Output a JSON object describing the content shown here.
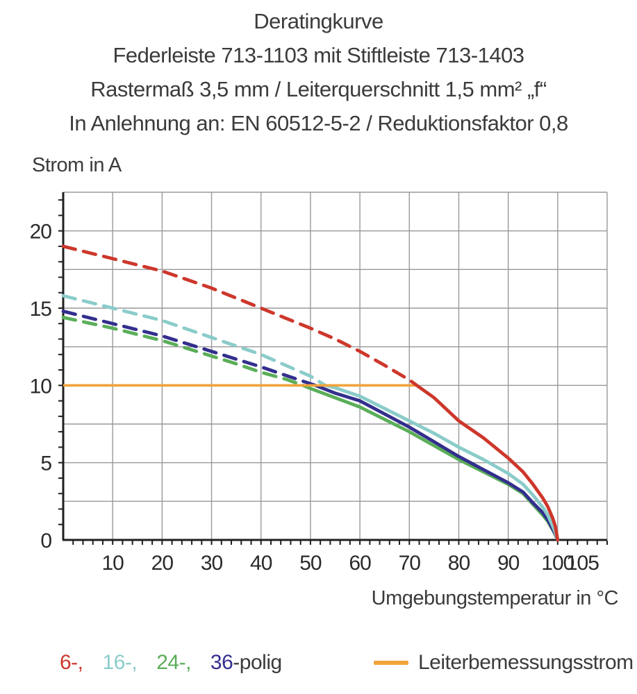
{
  "header": {
    "line1": "Deratingkurve",
    "line2": "Federleiste 713-1103 mit Stiftleiste 713-1403",
    "line3": "Rastermaß 3,5 mm / Leiterquerschnitt 1,5 mm² „f“",
    "line4": "In Anlehnung an: EN 60512-5-2 / Reduktionsfaktor 0,8"
  },
  "chart_data": {
    "type": "line",
    "title": "Deratingkurve",
    "ylabel": "Strom in A",
    "xlabel": "Umgebungstemperatur in °C",
    "xlim": [
      0,
      110
    ],
    "ylim": [
      0,
      22.5
    ],
    "x_tick_labels": [
      10,
      20,
      30,
      40,
      50,
      60,
      70,
      80,
      90,
      100,
      105
    ],
    "y_tick_labels": [
      0,
      5,
      10,
      15,
      20
    ],
    "x_gridline_step": 10,
    "y_gridline_step": 2.5,
    "x_minor_tick_step": 2,
    "y_minor_tick_step": 1,
    "grid": true,
    "colors": {
      "grid": "#999999",
      "axis": "#1f1f1f",
      "tick_label": "#2a2a2a"
    },
    "series": [
      {
        "name": "6-polig",
        "color": "#cd372b",
        "style_before": "dashed",
        "style_after": "solid",
        "style_change_at_x": 71.5,
        "points": [
          [
            0,
            19.0
          ],
          [
            5,
            18.6
          ],
          [
            10,
            18.2
          ],
          [
            15,
            17.8
          ],
          [
            20,
            17.4
          ],
          [
            25,
            16.85
          ],
          [
            30,
            16.3
          ],
          [
            35,
            15.65
          ],
          [
            40,
            15.0
          ],
          [
            45,
            14.35
          ],
          [
            50,
            13.7
          ],
          [
            55,
            13.0
          ],
          [
            60,
            12.2
          ],
          [
            65,
            11.3
          ],
          [
            70,
            10.35
          ],
          [
            71.5,
            10.0
          ],
          [
            75,
            9.2
          ],
          [
            80,
            7.7
          ],
          [
            85,
            6.6
          ],
          [
            90,
            5.3
          ],
          [
            93,
            4.4
          ],
          [
            95,
            3.6
          ],
          [
            97,
            2.7
          ],
          [
            98,
            2.15
          ],
          [
            99,
            1.4
          ],
          [
            99.5,
            0.9
          ],
          [
            100,
            0
          ]
        ]
      },
      {
        "name": "16-polig",
        "color": "#8accca",
        "style_before": "dashed",
        "style_after": "solid",
        "style_change_at_x": 53,
        "points": [
          [
            0,
            15.8
          ],
          [
            5,
            15.4
          ],
          [
            10,
            15.0
          ],
          [
            15,
            14.6
          ],
          [
            20,
            14.2
          ],
          [
            25,
            13.65
          ],
          [
            30,
            13.1
          ],
          [
            35,
            12.55
          ],
          [
            40,
            12.0
          ],
          [
            45,
            11.3
          ],
          [
            50,
            10.6
          ],
          [
            53,
            10.0
          ],
          [
            55,
            9.85
          ],
          [
            60,
            9.3
          ],
          [
            65,
            8.5
          ],
          [
            70,
            7.7
          ],
          [
            75,
            6.9
          ],
          [
            80,
            6.0
          ],
          [
            85,
            5.2
          ],
          [
            90,
            4.3
          ],
          [
            93,
            3.6
          ],
          [
            95,
            2.9
          ],
          [
            97,
            2.1
          ],
          [
            98,
            1.6
          ],
          [
            99,
            0.9
          ],
          [
            99.5,
            0.5
          ],
          [
            100,
            0
          ]
        ]
      },
      {
        "name": "24-polig",
        "color": "#5aae58",
        "style_before": "dashed",
        "style_after": "solid",
        "style_change_at_x": 48.5,
        "points": [
          [
            0,
            14.4
          ],
          [
            5,
            14.05
          ],
          [
            10,
            13.7
          ],
          [
            15,
            13.3
          ],
          [
            20,
            12.9
          ],
          [
            25,
            12.4
          ],
          [
            30,
            11.9
          ],
          [
            35,
            11.4
          ],
          [
            40,
            10.85
          ],
          [
            45,
            10.4
          ],
          [
            48.5,
            10.0
          ],
          [
            50,
            9.8
          ],
          [
            55,
            9.2
          ],
          [
            60,
            8.6
          ],
          [
            65,
            7.8
          ],
          [
            70,
            7.0
          ],
          [
            75,
            6.1
          ],
          [
            80,
            5.2
          ],
          [
            85,
            4.4
          ],
          [
            90,
            3.6
          ],
          [
            93,
            3.0
          ],
          [
            95,
            2.3
          ],
          [
            97,
            1.6
          ],
          [
            98,
            1.2
          ],
          [
            99,
            0.65
          ],
          [
            99.5,
            0.35
          ],
          [
            100,
            0
          ]
        ]
      },
      {
        "name": "36-polig",
        "color": "#322f8d",
        "style_before": "dashed",
        "style_after": "solid",
        "style_change_at_x": 51,
        "points": [
          [
            0,
            14.8
          ],
          [
            5,
            14.4
          ],
          [
            10,
            14.0
          ],
          [
            15,
            13.6
          ],
          [
            20,
            13.2
          ],
          [
            25,
            12.7
          ],
          [
            30,
            12.2
          ],
          [
            35,
            11.7
          ],
          [
            40,
            11.2
          ],
          [
            45,
            10.65
          ],
          [
            51,
            10.0
          ],
          [
            55,
            9.5
          ],
          [
            60,
            9.0
          ],
          [
            65,
            8.15
          ],
          [
            70,
            7.3
          ],
          [
            75,
            6.35
          ],
          [
            80,
            5.4
          ],
          [
            85,
            4.55
          ],
          [
            90,
            3.7
          ],
          [
            93,
            3.1
          ],
          [
            95,
            2.4
          ],
          [
            97,
            1.75
          ],
          [
            98,
            1.3
          ],
          [
            99,
            0.7
          ],
          [
            99.5,
            0.4
          ],
          [
            100,
            0
          ]
        ]
      }
    ],
    "reference_line": {
      "name": "Leiterbemessungsstrom",
      "color": "#f0a33b",
      "y": 10,
      "x_start": 0,
      "x_end": 71.5
    }
  },
  "legend": {
    "pole_items": [
      {
        "label": "6-,",
        "color": "#cd372b"
      },
      {
        "label": "16-,",
        "color": "#8accca"
      },
      {
        "label": "24-,",
        "color": "#5aae58"
      },
      {
        "label": "36",
        "color": "#322f8d"
      }
    ],
    "pole_suffix": "-polig",
    "reference": {
      "label": "Leiterbemessungsstrom",
      "color": "#f0a33b"
    }
  }
}
